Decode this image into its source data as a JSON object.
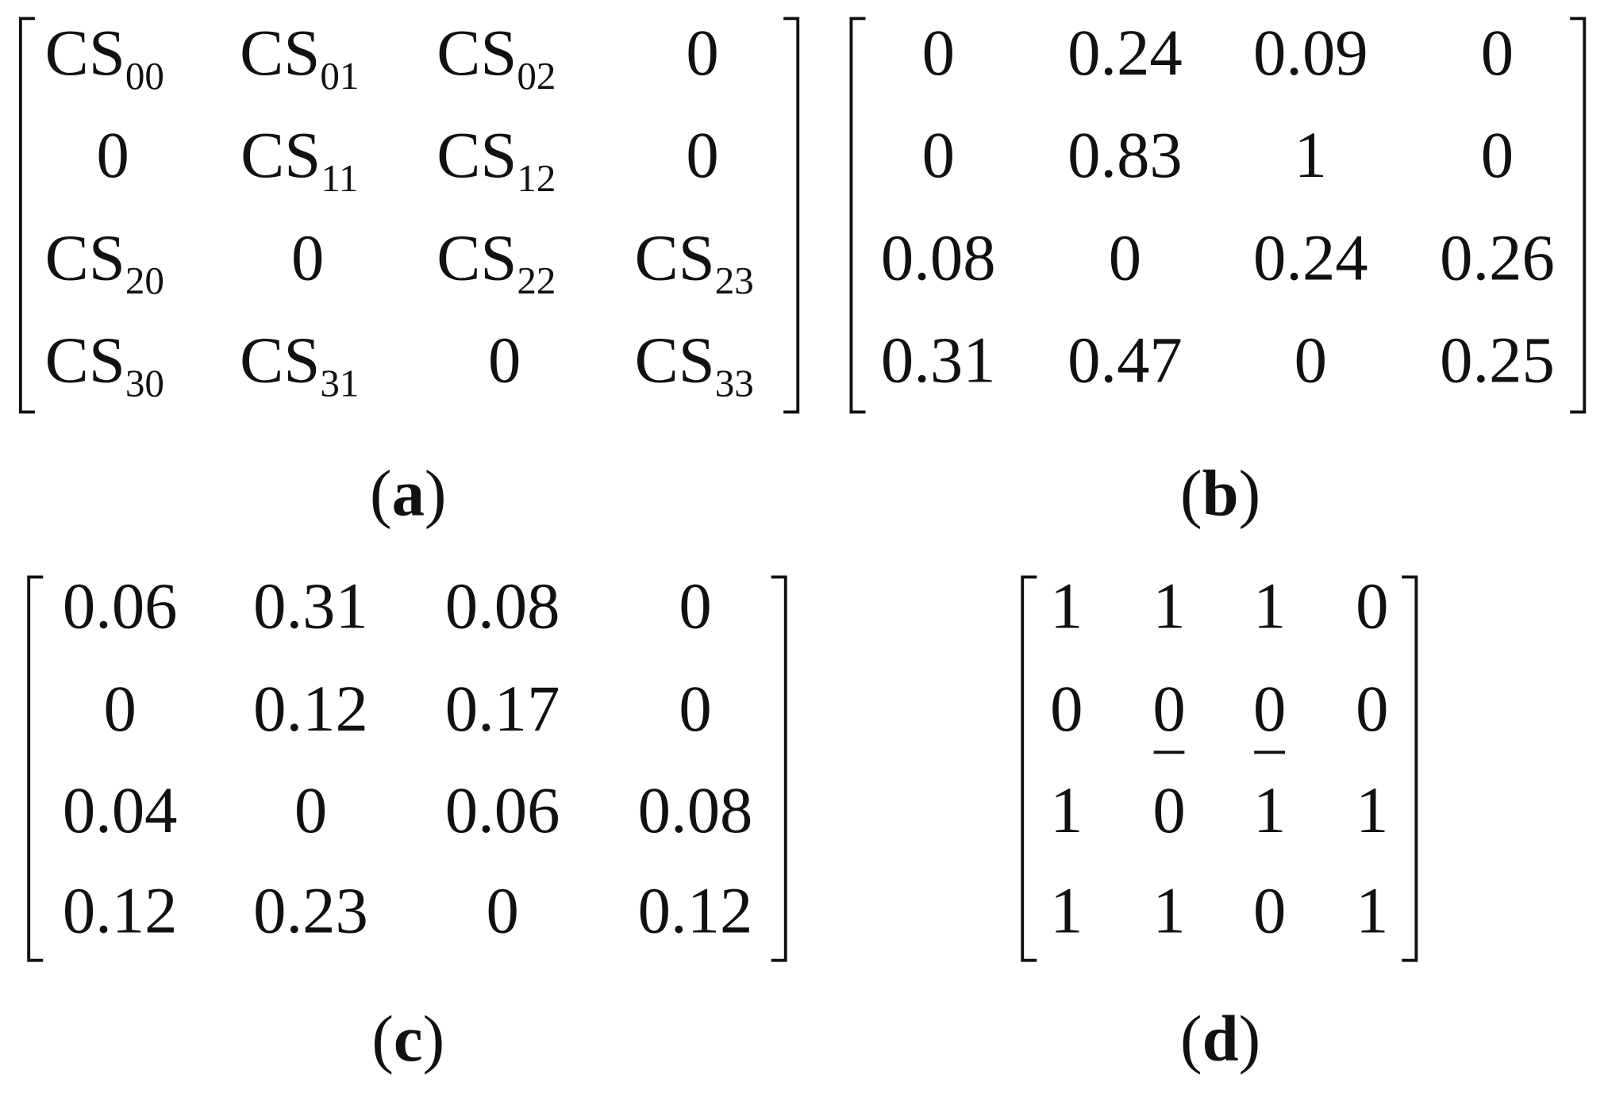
{
  "matrices": [
    {
      "rows": [
        [
          {
            "base": "CS",
            "sub": "00"
          },
          {
            "base": "CS",
            "sub": "01"
          },
          {
            "base": "CS",
            "sub": "02"
          },
          "0"
        ],
        [
          "0",
          {
            "base": "CS",
            "sub": "11"
          },
          {
            "base": "CS",
            "sub": "12"
          },
          "0"
        ],
        [
          {
            "base": "CS",
            "sub": "20"
          },
          "0",
          {
            "base": "CS",
            "sub": "22"
          },
          {
            "base": "CS",
            "sub": "23"
          }
        ],
        [
          {
            "base": "CS",
            "sub": "30"
          },
          {
            "base": "CS",
            "sub": "31"
          },
          "0",
          {
            "base": "CS",
            "sub": "33"
          }
        ]
      ],
      "caption": [
        "(",
        "a",
        ")"
      ]
    },
    {
      "rows": [
        [
          "0",
          "0.24",
          "0.09",
          "0"
        ],
        [
          "0",
          "0.83",
          "1",
          "0"
        ],
        [
          "0.08",
          "0",
          "0.24",
          "0.26"
        ],
        [
          "0.31",
          "0.47",
          "0",
          "0.25"
        ]
      ],
      "caption": [
        "(",
        "b",
        ")"
      ]
    },
    {
      "rows": [
        [
          "0.06",
          "0.31",
          "0.08",
          "0"
        ],
        [
          "0",
          "0.12",
          "0.17",
          "0"
        ],
        [
          "0.04",
          "0",
          "0.06",
          "0.08"
        ],
        [
          "0.12",
          "0.23",
          "0",
          "0.12"
        ]
      ],
      "caption": [
        "(",
        "c",
        ")"
      ]
    },
    {
      "rows": [
        [
          "1",
          "1",
          "1",
          "0"
        ],
        [
          "0",
          {
            "text": "0",
            "underline": true
          },
          {
            "text": "0",
            "underline": true
          },
          "0"
        ],
        [
          "1",
          "0",
          "1",
          "1"
        ],
        [
          "1",
          "1",
          "0",
          "1"
        ]
      ],
      "caption": [
        "(",
        "d",
        ")"
      ]
    }
  ]
}
